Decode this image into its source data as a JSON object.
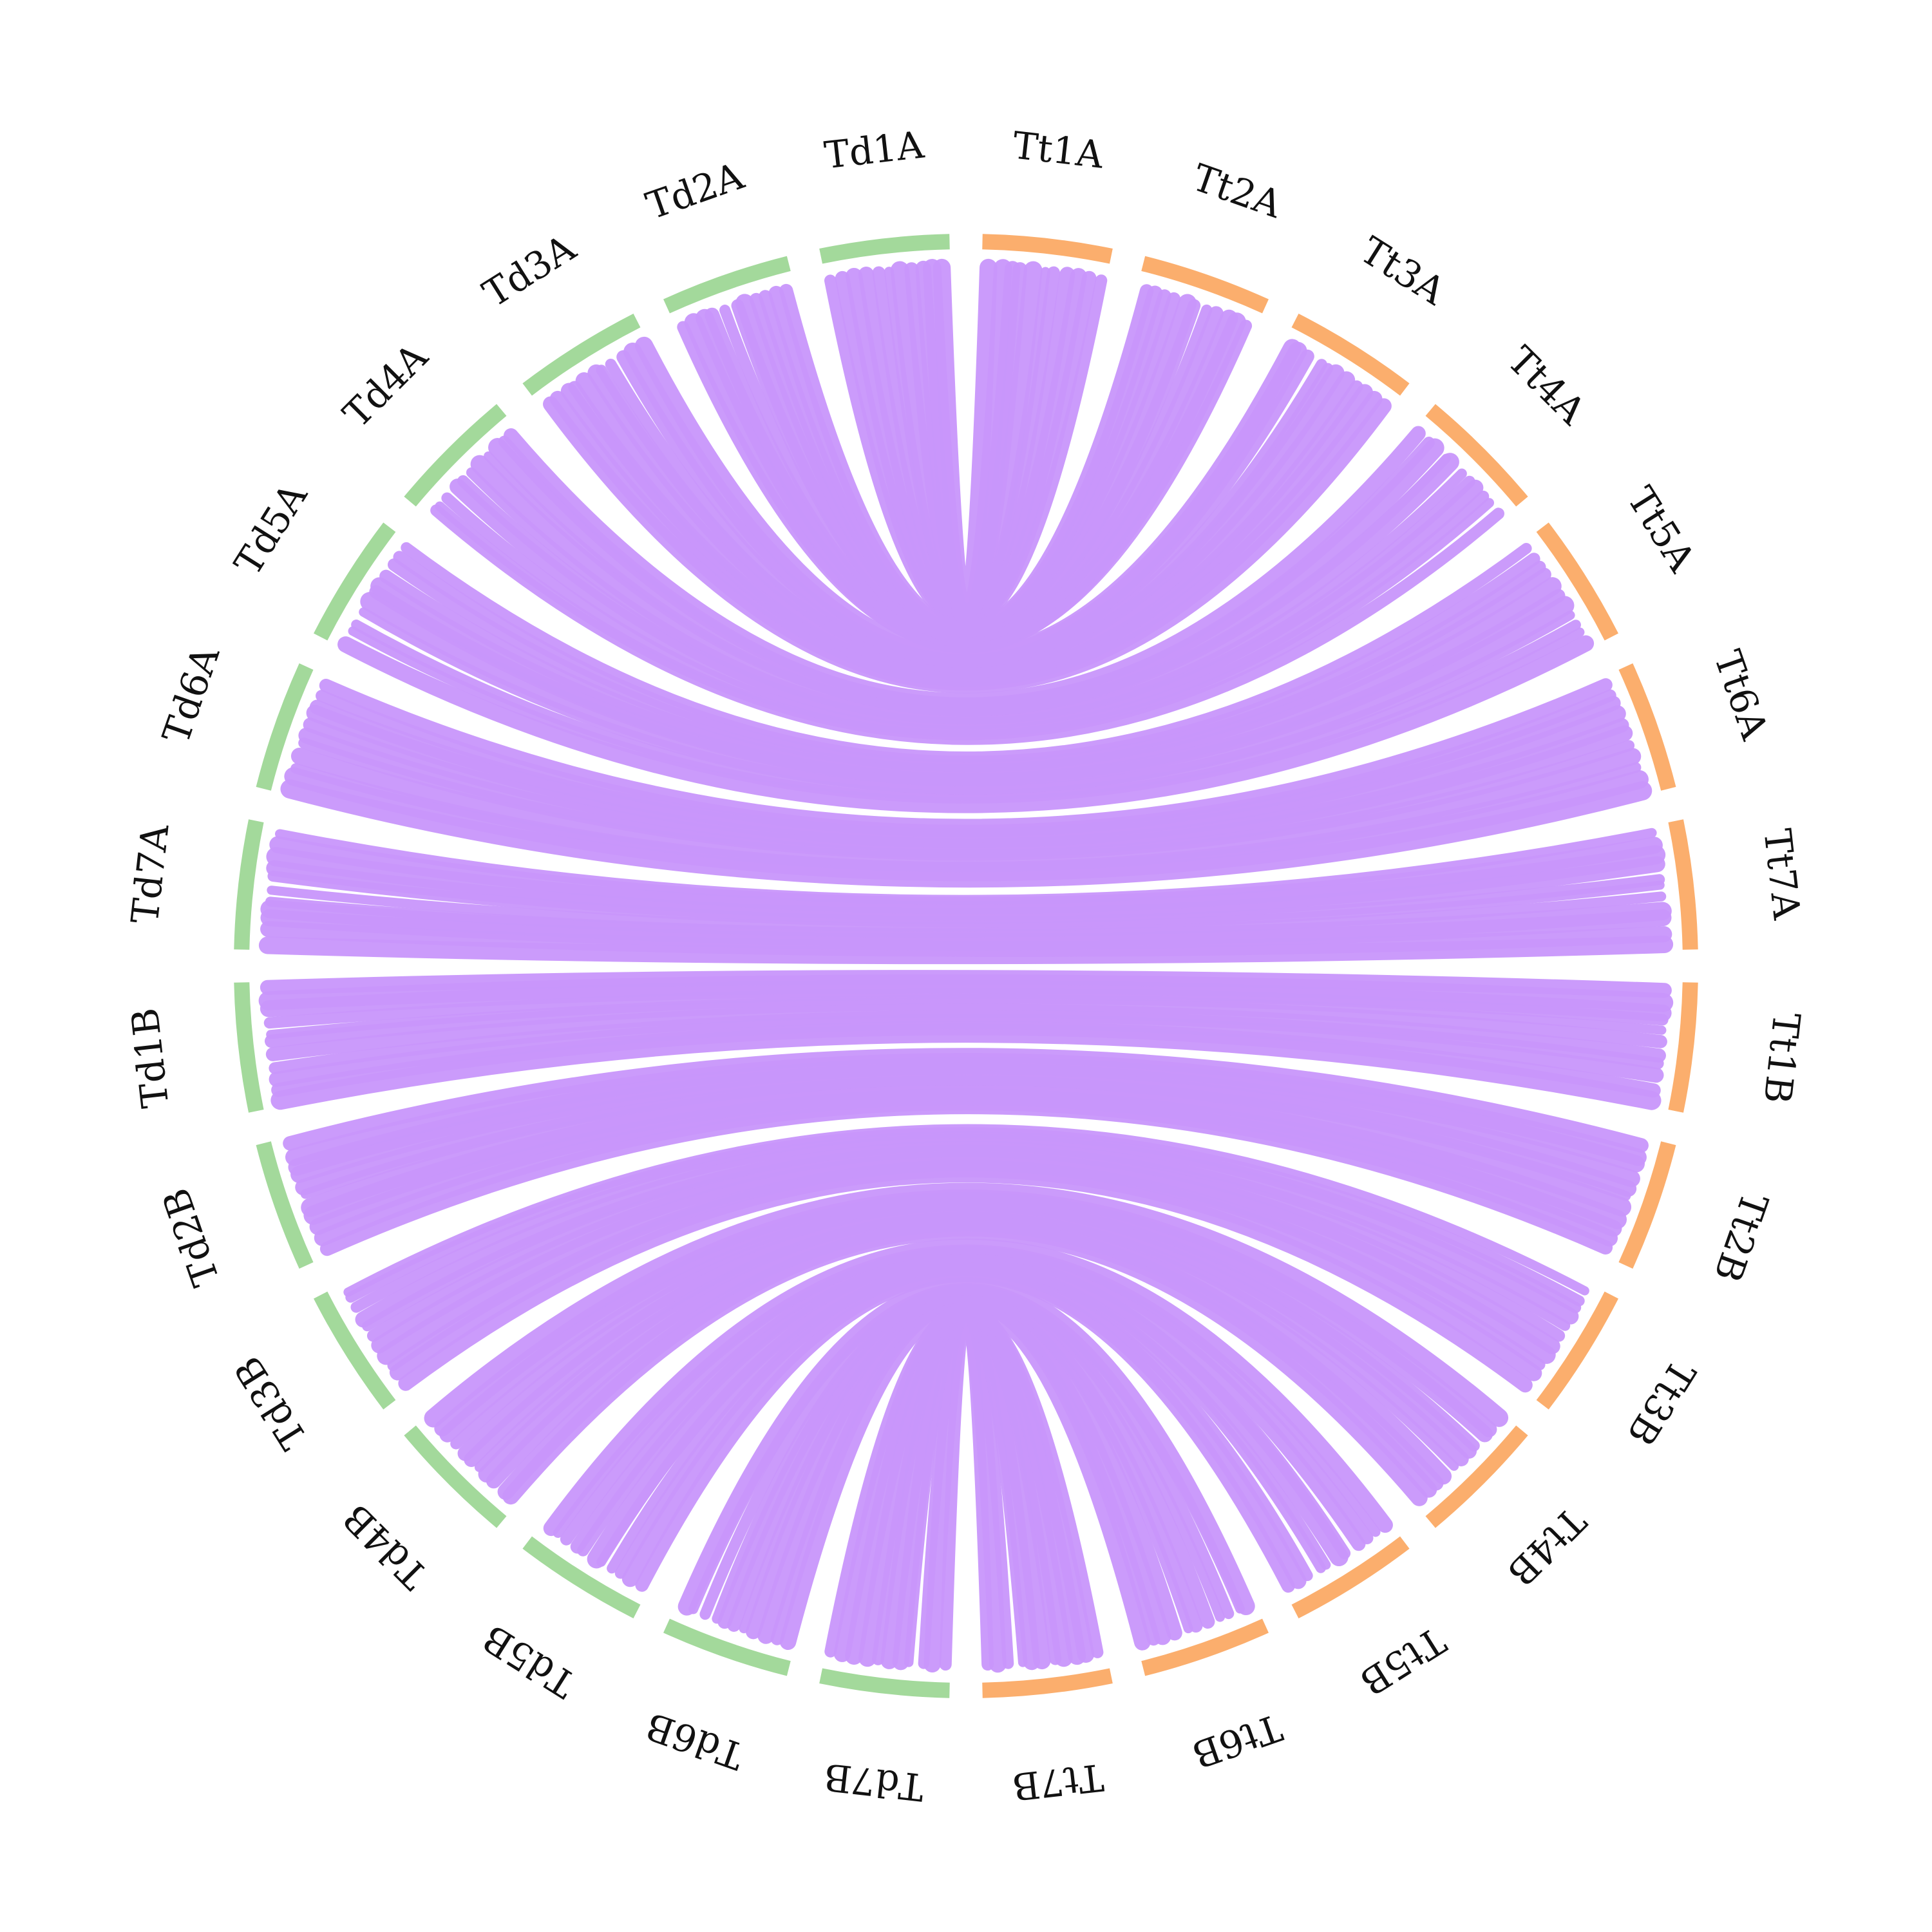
{
  "diagram": {
    "type": "circos-synteny",
    "colors": {
      "group_td": "#a3d99b",
      "group_tt": "#fbae6d",
      "links": "#c896fb",
      "labels": "#111111",
      "background": "#ffffff"
    },
    "chromosomes": [
      {
        "id": "Tt1A",
        "label": "Tt1A",
        "group": "tt"
      },
      {
        "id": "Tt2A",
        "label": "Tt2A",
        "group": "tt"
      },
      {
        "id": "Tt3A",
        "label": "Tt3A",
        "group": "tt"
      },
      {
        "id": "Tt4A",
        "label": "Tt4A",
        "group": "tt"
      },
      {
        "id": "Tt5A",
        "label": "Tt5A",
        "group": "tt"
      },
      {
        "id": "Tt6A",
        "label": "Tt6A",
        "group": "tt"
      },
      {
        "id": "Tt7A",
        "label": "Tt7A",
        "group": "tt"
      },
      {
        "id": "Tt1B",
        "label": "Tt1B",
        "group": "tt"
      },
      {
        "id": "Tt2B",
        "label": "Tt2B",
        "group": "tt"
      },
      {
        "id": "Tt3B",
        "label": "Tt3B",
        "group": "tt"
      },
      {
        "id": "Tt4B",
        "label": "Tt4B",
        "group": "tt"
      },
      {
        "id": "Tt5B",
        "label": "Tt5B",
        "group": "tt"
      },
      {
        "id": "Tt6B",
        "label": "Tt6B",
        "group": "tt"
      },
      {
        "id": "Tt7B",
        "label": "Tt7B",
        "group": "tt"
      },
      {
        "id": "Td7B",
        "label": "Td7B",
        "group": "td"
      },
      {
        "id": "Td6B",
        "label": "Td6B",
        "group": "td"
      },
      {
        "id": "Td5B",
        "label": "Td5B",
        "group": "td"
      },
      {
        "id": "Td4B",
        "label": "Td4B",
        "group": "td"
      },
      {
        "id": "Td3B",
        "label": "Td3B",
        "group": "td"
      },
      {
        "id": "Td2B",
        "label": "Td2B",
        "group": "td"
      },
      {
        "id": "Td1B",
        "label": "Td1B",
        "group": "td"
      },
      {
        "id": "Td7A",
        "label": "Td7A",
        "group": "td"
      },
      {
        "id": "Td6A",
        "label": "Td6A",
        "group": "td"
      },
      {
        "id": "Td5A",
        "label": "Td5A",
        "group": "td"
      },
      {
        "id": "Td4A",
        "label": "Td4A",
        "group": "td"
      },
      {
        "id": "Td3A",
        "label": "Td3A",
        "group": "td"
      },
      {
        "id": "Td2A",
        "label": "Td2A",
        "group": "td"
      },
      {
        "id": "Td1A",
        "label": "Td1A",
        "group": "td"
      }
    ],
    "links": [
      {
        "from": "Td1A",
        "to": "Tt1A"
      },
      {
        "from": "Td2A",
        "to": "Tt2A"
      },
      {
        "from": "Td3A",
        "to": "Tt3A"
      },
      {
        "from": "Td4A",
        "to": "Tt4A"
      },
      {
        "from": "Td5A",
        "to": "Tt5A"
      },
      {
        "from": "Td6A",
        "to": "Tt6A"
      },
      {
        "from": "Td7A",
        "to": "Tt7A"
      },
      {
        "from": "Td1B",
        "to": "Tt1B"
      },
      {
        "from": "Td2B",
        "to": "Tt2B"
      },
      {
        "from": "Td3B",
        "to": "Tt3B"
      },
      {
        "from": "Td4B",
        "to": "Tt4B"
      },
      {
        "from": "Td5B",
        "to": "Tt5B"
      },
      {
        "from": "Td6B",
        "to": "Tt6B"
      },
      {
        "from": "Td7B",
        "to": "Tt7B"
      }
    ]
  }
}
